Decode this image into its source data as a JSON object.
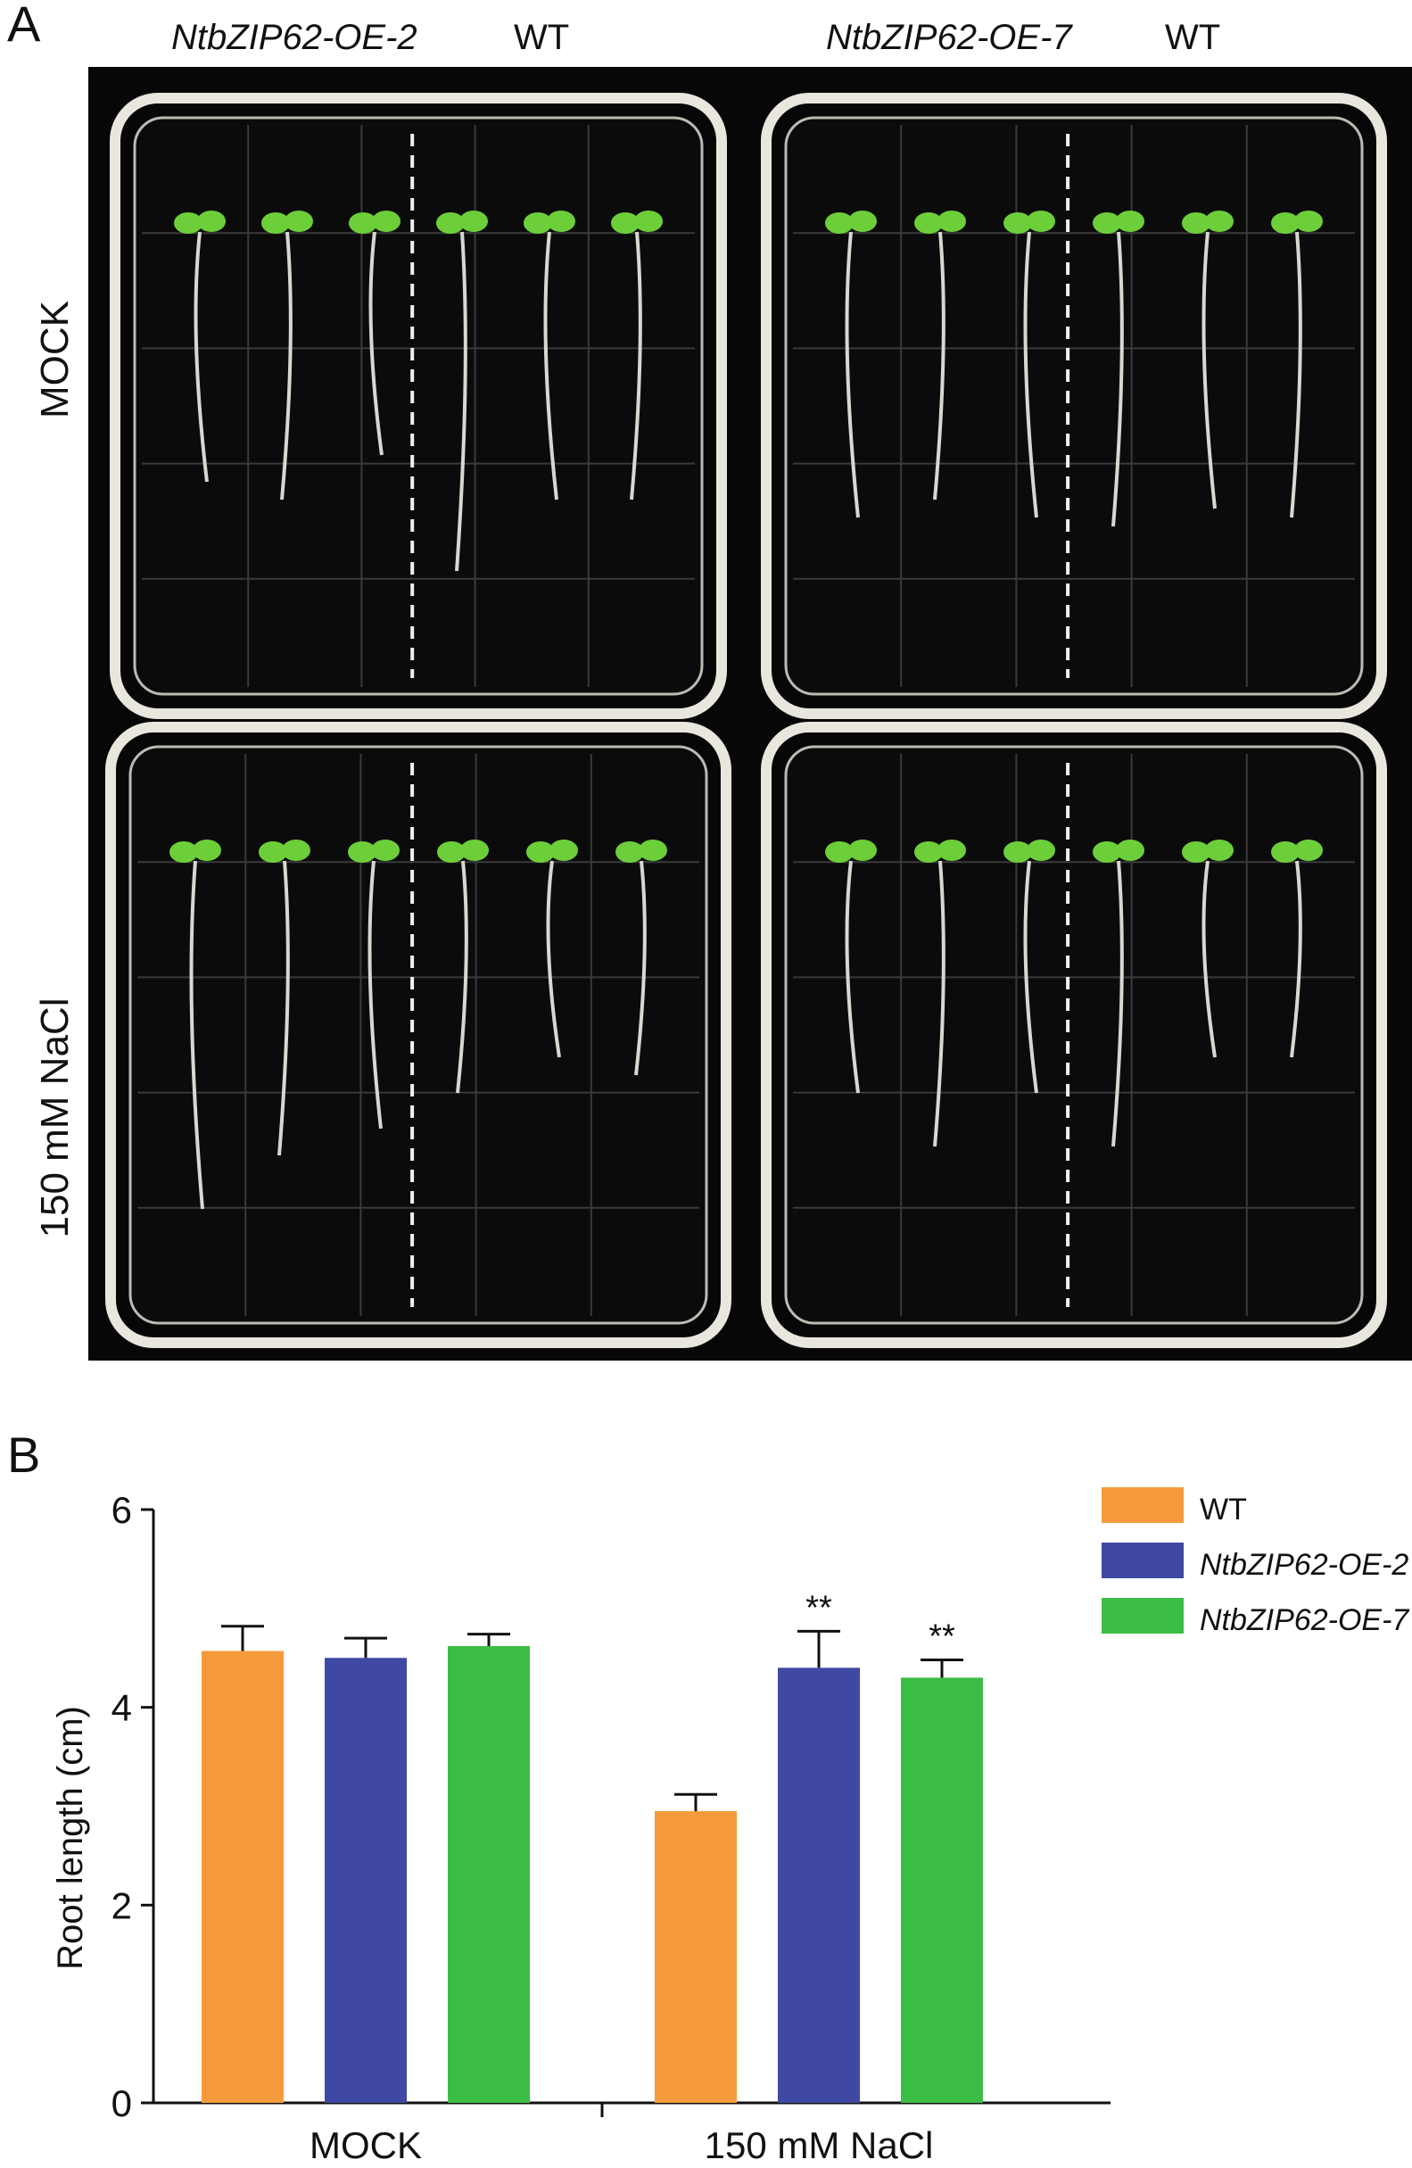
{
  "panel_a": {
    "letter": "A",
    "columns": [
      {
        "label": "NtbZIP62-OE-2",
        "italic": true
      },
      {
        "label": "WT",
        "italic": false
      },
      {
        "label": "NtbZIP62-OE-7",
        "italic": true
      },
      {
        "label": "WT",
        "italic": false
      }
    ],
    "rows": [
      {
        "label": "MOCK"
      },
      {
        "label": "150 mM NaCl"
      }
    ],
    "colors": {
      "background": "#070707",
      "plate_rim": "#e9e6de",
      "seedling": "#6ccf3a",
      "root": "#d8d8d0"
    }
  },
  "panel_b": {
    "letter": "B",
    "significance": "**"
  },
  "chart_data": {
    "type": "bar",
    "categories": [
      "MOCK",
      "150 mM NaCl"
    ],
    "ylabel": "Root length (cm)",
    "xlabel": "",
    "ylim": [
      0,
      6
    ],
    "yticks": [
      0,
      2,
      4,
      6
    ],
    "legend_position": "top-right",
    "series": [
      {
        "name": "WT",
        "color": "#f59a3c",
        "italic": false,
        "values": [
          4.57,
          2.95
        ],
        "errors": [
          0.25,
          0.17
        ],
        "significance": [
          "",
          ""
        ]
      },
      {
        "name": "NtbZIP62-OE-2",
        "color": "#3f48a2",
        "italic": true,
        "values": [
          4.5,
          4.4
        ],
        "errors": [
          0.2,
          0.37
        ],
        "significance": [
          "",
          "**"
        ]
      },
      {
        "name": "NtbZIP62-OE-7",
        "color": "#3bbd45",
        "italic": true,
        "values": [
          4.62,
          4.3
        ],
        "errors": [
          0.12,
          0.18
        ],
        "significance": [
          "",
          "**"
        ]
      }
    ]
  }
}
